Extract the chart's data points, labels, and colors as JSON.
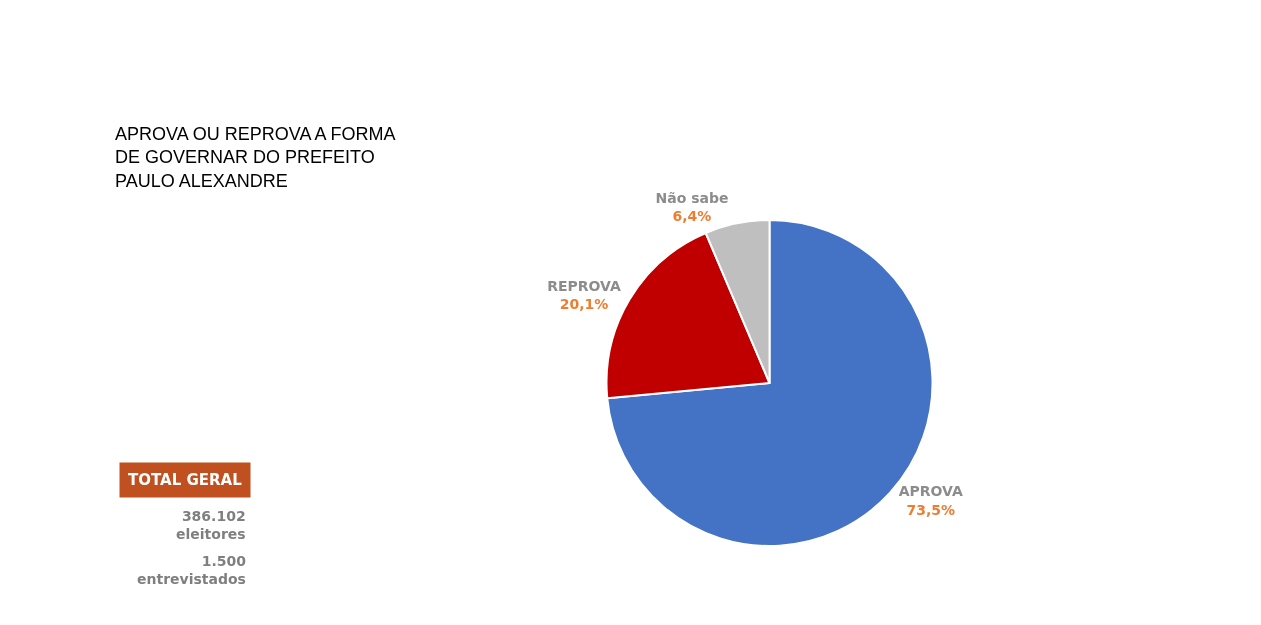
{
  "chart_data": {
    "type": "pie",
    "title": "APROVA OU REPROVA A FORMA DE GOVERNAR DO PREFEITO PAULO ALEXANDRE",
    "categories": [
      "APROVA",
      "REPROVA",
      "Não sabe"
    ],
    "values": [
      73.5,
      20.1,
      6.4
    ],
    "colors": [
      "#4472c4",
      "#c00000",
      "#bfbfbf"
    ],
    "value_labels": [
      "73,5%",
      "20,1%",
      "6,4%"
    ],
    "legend": false,
    "annotations": [
      "TOTAL GERAL",
      "386.102 eleitores",
      "1.500 entrevistados"
    ]
  }
}
